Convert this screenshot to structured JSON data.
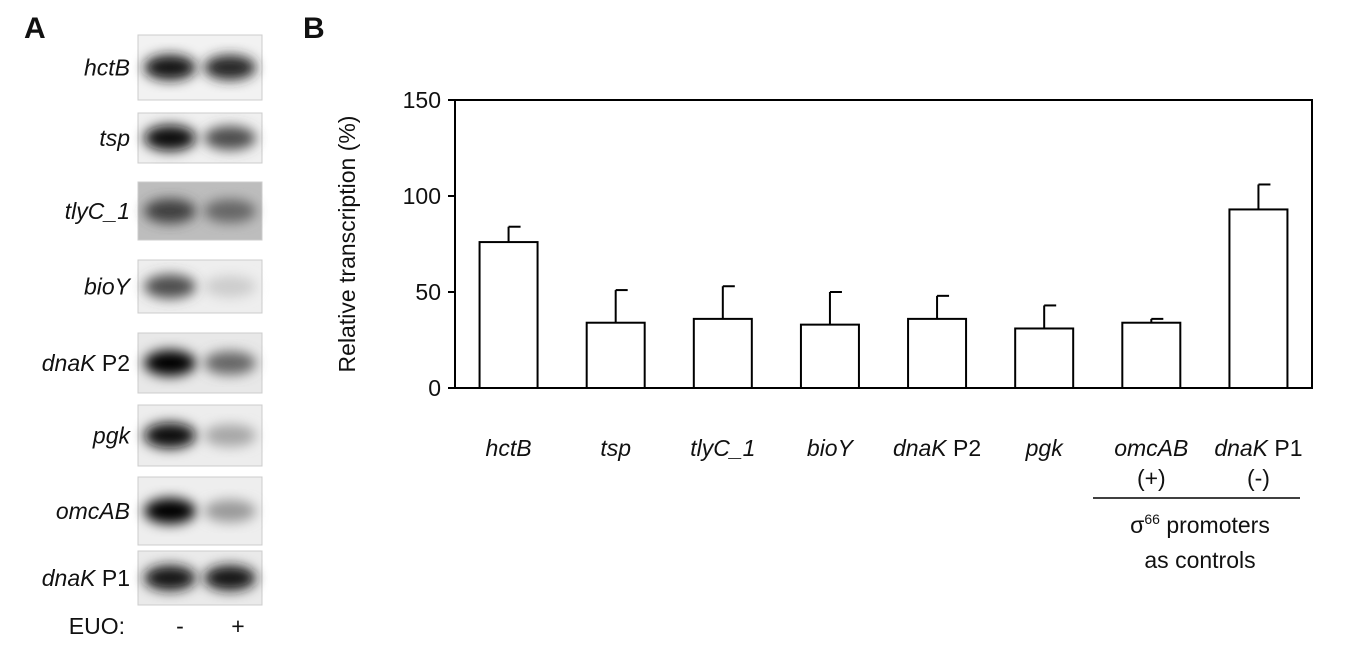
{
  "panel_a": {
    "label": "A",
    "genes": [
      "hctB",
      "tsp",
      "tlyC_1",
      "bioY",
      "dnaK P2",
      "pgk",
      "omcAB",
      "dnaK P1"
    ],
    "euo_label": "EUO:",
    "lanes": [
      "-",
      "+"
    ]
  },
  "chart_data": {
    "type": "bar",
    "panel_label": "B",
    "y_label": "Relative transcription (%)",
    "categories": [
      "hctB",
      "tsp",
      "tlyC_1",
      "bioY",
      "dnaK P2",
      "pgk",
      "omcAB",
      "dnaK P1"
    ],
    "values": [
      76,
      34,
      36,
      33,
      36,
      31,
      34,
      93
    ],
    "errors": [
      8,
      17,
      17,
      17,
      12,
      12,
      2,
      13
    ],
    "color": "#ffffff",
    "ylim": [
      0,
      150
    ],
    "yticks": [
      0,
      50,
      100,
      150
    ],
    "control_signs": [
      "(+)",
      "(-)"
    ],
    "control_note": {
      "symbol": "σ",
      "superscript": "66",
      "text": "promoters",
      "line2": "as controls"
    }
  }
}
